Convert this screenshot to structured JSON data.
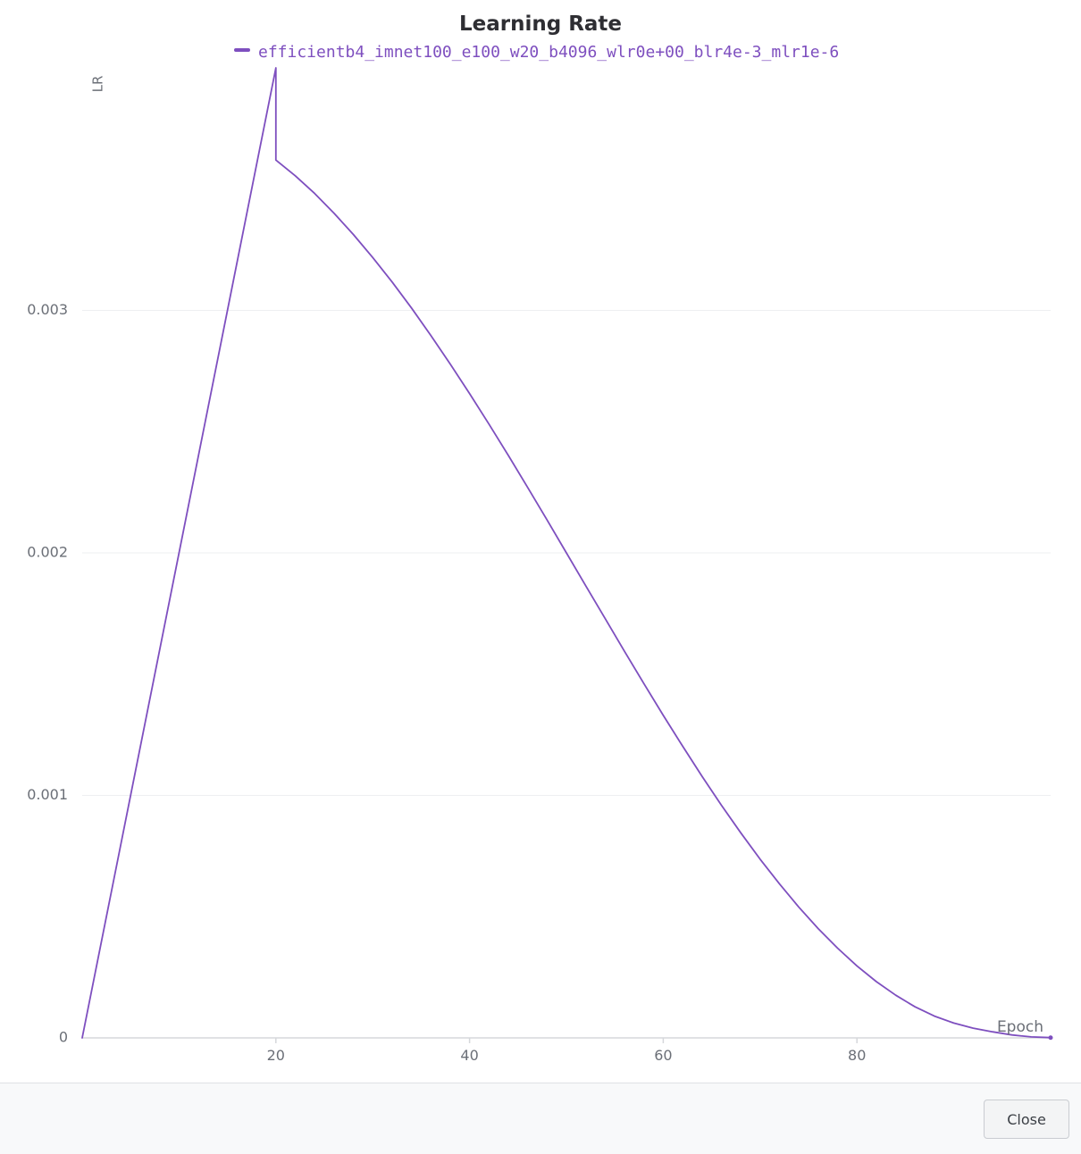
{
  "chart_data": {
    "type": "line",
    "title": "Learning Rate",
    "xlabel": "Epoch",
    "ylabel": "LR",
    "xlim": [
      0,
      100
    ],
    "ylim": [
      0,
      0.004
    ],
    "x_ticks": [
      20,
      40,
      60,
      80
    ],
    "y_ticks": [
      0,
      0.001,
      0.002,
      0.003
    ],
    "y_tick_labels": [
      "0",
      "0.001",
      "0.002",
      "0.003"
    ],
    "grid": true,
    "legend_position": "top-center",
    "series": [
      {
        "name": "efficientb4_imnet100_e100_w20_b4096_wlr0e+00_blr4e-3_mlr1e-6",
        "color": "#7e4fbf",
        "x": [
          0,
          20,
          20,
          22,
          24,
          26,
          28,
          30,
          32,
          34,
          36,
          38,
          40,
          42,
          44,
          46,
          48,
          50,
          52,
          54,
          56,
          58,
          60,
          62,
          64,
          66,
          68,
          70,
          72,
          74,
          76,
          78,
          80,
          82,
          84,
          86,
          88,
          90,
          92,
          94,
          96,
          98,
          100
        ],
        "y": [
          0,
          0.004,
          0.00362,
          0.003555,
          0.003482,
          0.003401,
          0.003313,
          0.003218,
          0.003117,
          0.00301,
          0.002897,
          0.002779,
          0.002657,
          0.002531,
          0.002402,
          0.00227,
          0.002136,
          0.002,
          0.001864,
          0.001729,
          0.001594,
          0.001461,
          0.00133,
          0.001203,
          0.001079,
          0.00096,
          0.000846,
          0.000737,
          0.000635,
          0.000539,
          0.000451,
          0.00037,
          0.000297,
          0.000232,
          0.000176,
          0.000128,
          9e-05,
          6.1e-05,
          4e-05,
          2.5e-05,
          1.2e-05,
          4e-06,
          1e-06
        ]
      }
    ]
  },
  "footer": {
    "close_label": "Close"
  }
}
